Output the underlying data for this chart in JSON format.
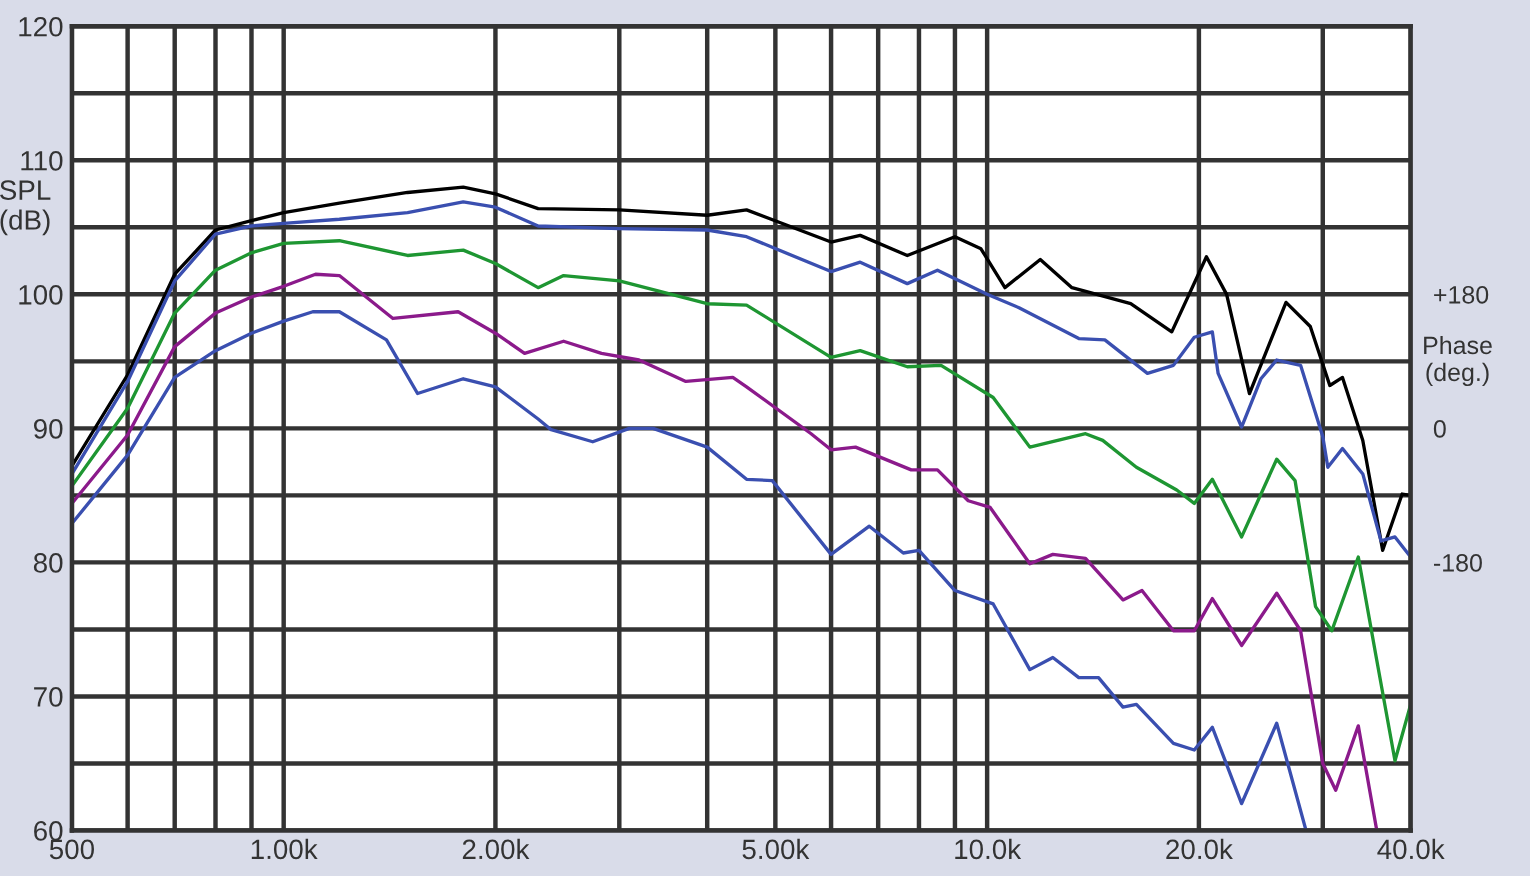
{
  "chart_data": {
    "type": "line",
    "ylabel": "SPL\n(dB)",
    "y2label": "Phase\n(deg.)",
    "log": "x",
    "grid": true,
    "marker": "none",
    "line_style": "solid",
    "xlim": [
      500,
      40000
    ],
    "ylim": [
      60,
      120
    ],
    "y2lim": [
      -540,
      540
    ],
    "xticks": [
      500,
      {
        "value": 600,
        "label": null
      },
      {
        "value": 700,
        "label": null
      },
      {
        "value": 800,
        "label": null
      },
      {
        "value": 900,
        "label": null
      },
      {
        "value": 1000,
        "label": "1.00k"
      },
      {
        "value": 2000,
        "label": "2.00k"
      },
      {
        "value": 3000,
        "label": null
      },
      {
        "value": 4000,
        "label": null
      },
      {
        "value": 5000,
        "label": "5.00k"
      },
      {
        "value": 6000,
        "label": null
      },
      {
        "value": 7000,
        "label": null
      },
      {
        "value": 8000,
        "label": null
      },
      {
        "value": 9000,
        "label": null
      },
      {
        "value": 10000,
        "label": "10.0k"
      },
      {
        "value": 20000,
        "label": "20.0k"
      },
      {
        "value": 30000,
        "label": null
      },
      {
        "value": 40000,
        "label": "40.0k"
      }
    ],
    "yticks": [
      60,
      {
        "value": 65,
        "label": null
      },
      70,
      {
        "value": 75,
        "label": null
      },
      80,
      {
        "value": 85,
        "label": null
      },
      90,
      {
        "value": 95,
        "label": null
      },
      100,
      {
        "value": 105,
        "label": null
      },
      110,
      {
        "value": 115,
        "label": null
      },
      120
    ],
    "y2ticks": [
      {
        "value": 180,
        "label": "+180"
      },
      0,
      -180
    ],
    "series": [
      {
        "color": "#000000",
        "x": [
          500,
          600,
          700,
          800,
          900,
          1000,
          1200,
          1500,
          1800,
          2000,
          2300,
          3000,
          4000,
          4550,
          6000,
          6600,
          7700,
          9000,
          9800,
          10600,
          11900,
          13200,
          16000,
          18300,
          20500,
          21900,
          23600,
          26600,
          28800,
          30700,
          32000,
          34200,
          36500,
          38900,
          40000
        ],
        "values": [
          87.2,
          94,
          101.5,
          104.8,
          105.5,
          106.1,
          106.8,
          107.6,
          108.0,
          107.5,
          106.4,
          106.3,
          105.9,
          106.3,
          103.9,
          104.4,
          102.9,
          104.3,
          103.4,
          100.5,
          102.6,
          100.5,
          99.3,
          97.2,
          102.8,
          100.0,
          92.6,
          99.4,
          97.6,
          93.2,
          93.8,
          89.1,
          80.9,
          85.1,
          85.0
        ]
      },
      {
        "color": "#3a4fb0",
        "x": [
          500,
          600,
          700,
          800,
          900,
          1000,
          1200,
          1500,
          1800,
          2000,
          2300,
          3000,
          4000,
          4550,
          6000,
          6600,
          7700,
          8500,
          10000,
          11100,
          13500,
          14700,
          16900,
          18400,
          19700,
          20900,
          21300,
          23000,
          24500,
          25800,
          27900,
          30000,
          30500,
          32000,
          34200,
          36300,
          38000,
          40000
        ],
        "values": [
          86.6,
          93.5,
          101,
          104.5,
          105.1,
          105.3,
          105.6,
          106.1,
          106.9,
          106.5,
          105.1,
          104.9,
          104.8,
          104.3,
          101.7,
          102.4,
          100.8,
          101.8,
          100.0,
          99.0,
          96.7,
          96.6,
          94.1,
          94.7,
          96.8,
          97.2,
          94.1,
          90.1,
          93.7,
          95.1,
          94.7,
          89.4,
          87.1,
          88.5,
          86.6,
          81.6,
          81.9,
          80.4
        ]
      },
      {
        "color": "#1e9632",
        "x": [
          500,
          600,
          700,
          800,
          900,
          1000,
          1200,
          1500,
          1800,
          2000,
          2300,
          2500,
          3000,
          4000,
          4550,
          6000,
          6600,
          7700,
          8600,
          10200,
          11500,
          13800,
          14600,
          16300,
          18600,
          19700,
          20900,
          23000,
          25800,
          27400,
          29300,
          30900,
          33700,
          35800,
          38000,
          40000
        ],
        "values": [
          85.7,
          91.5,
          98.6,
          101.8,
          103.1,
          103.8,
          104.0,
          102.9,
          103.3,
          102.3,
          100.5,
          101.4,
          101.0,
          99.3,
          99.2,
          95.3,
          95.8,
          94.6,
          94.7,
          92.3,
          88.6,
          89.6,
          89.1,
          87.1,
          85.4,
          84.4,
          86.2,
          81.9,
          87.7,
          86.1,
          76.7,
          74.9,
          80.4,
          72.7,
          65.2,
          69.4
        ]
      },
      {
        "color": "#8b1a8b",
        "x": [
          500,
          600,
          700,
          800,
          900,
          1000,
          1110,
          1200,
          1430,
          1770,
          2000,
          2200,
          2500,
          2830,
          3200,
          3730,
          4350,
          4550,
          5620,
          6000,
          6500,
          7800,
          8500,
          9400,
          10100,
          11500,
          12400,
          13800,
          15600,
          16600,
          18400,
          19700,
          20900,
          23000,
          25800,
          27900,
          30000,
          31300,
          33700,
          35800
        ],
        "values": [
          84.4,
          89.5,
          96.1,
          98.6,
          99.8,
          100.6,
          101.5,
          101.4,
          98.2,
          98.7,
          97.1,
          95.6,
          96.5,
          95.6,
          95.1,
          93.5,
          93.8,
          93.1,
          89.6,
          88.4,
          88.6,
          86.9,
          86.9,
          84.6,
          84.1,
          79.9,
          80.6,
          80.3,
          77.2,
          77.9,
          74.9,
          74.9,
          77.3,
          73.8,
          77.7,
          74.9,
          65.0,
          63.0,
          67.8,
          60.0
        ]
      },
      {
        "color": "#3a4fb0",
        "x": [
          500,
          600,
          700,
          800,
          900,
          1000,
          1100,
          1200,
          1400,
          1550,
          1800,
          2000,
          2300,
          2400,
          2750,
          3100,
          3350,
          4000,
          4550,
          4950,
          6000,
          6800,
          7600,
          8000,
          9000,
          10200,
          11500,
          12400,
          13500,
          14400,
          15600,
          16300,
          18400,
          19700,
          20900,
          23000,
          25800,
          28400
        ],
        "values": [
          82.9,
          88,
          93.8,
          95.8,
          97.1,
          98.0,
          98.7,
          98.7,
          96.6,
          92.6,
          93.7,
          93.1,
          90.7,
          89.9,
          89.0,
          90.0,
          90.0,
          88.6,
          86.2,
          86.1,
          80.6,
          82.7,
          80.7,
          80.9,
          77.9,
          76.9,
          72.0,
          72.9,
          71.4,
          71.4,
          69.2,
          69.4,
          66.5,
          66.0,
          67.7,
          62.0,
          68.0,
          60.0
        ]
      }
    ]
  }
}
